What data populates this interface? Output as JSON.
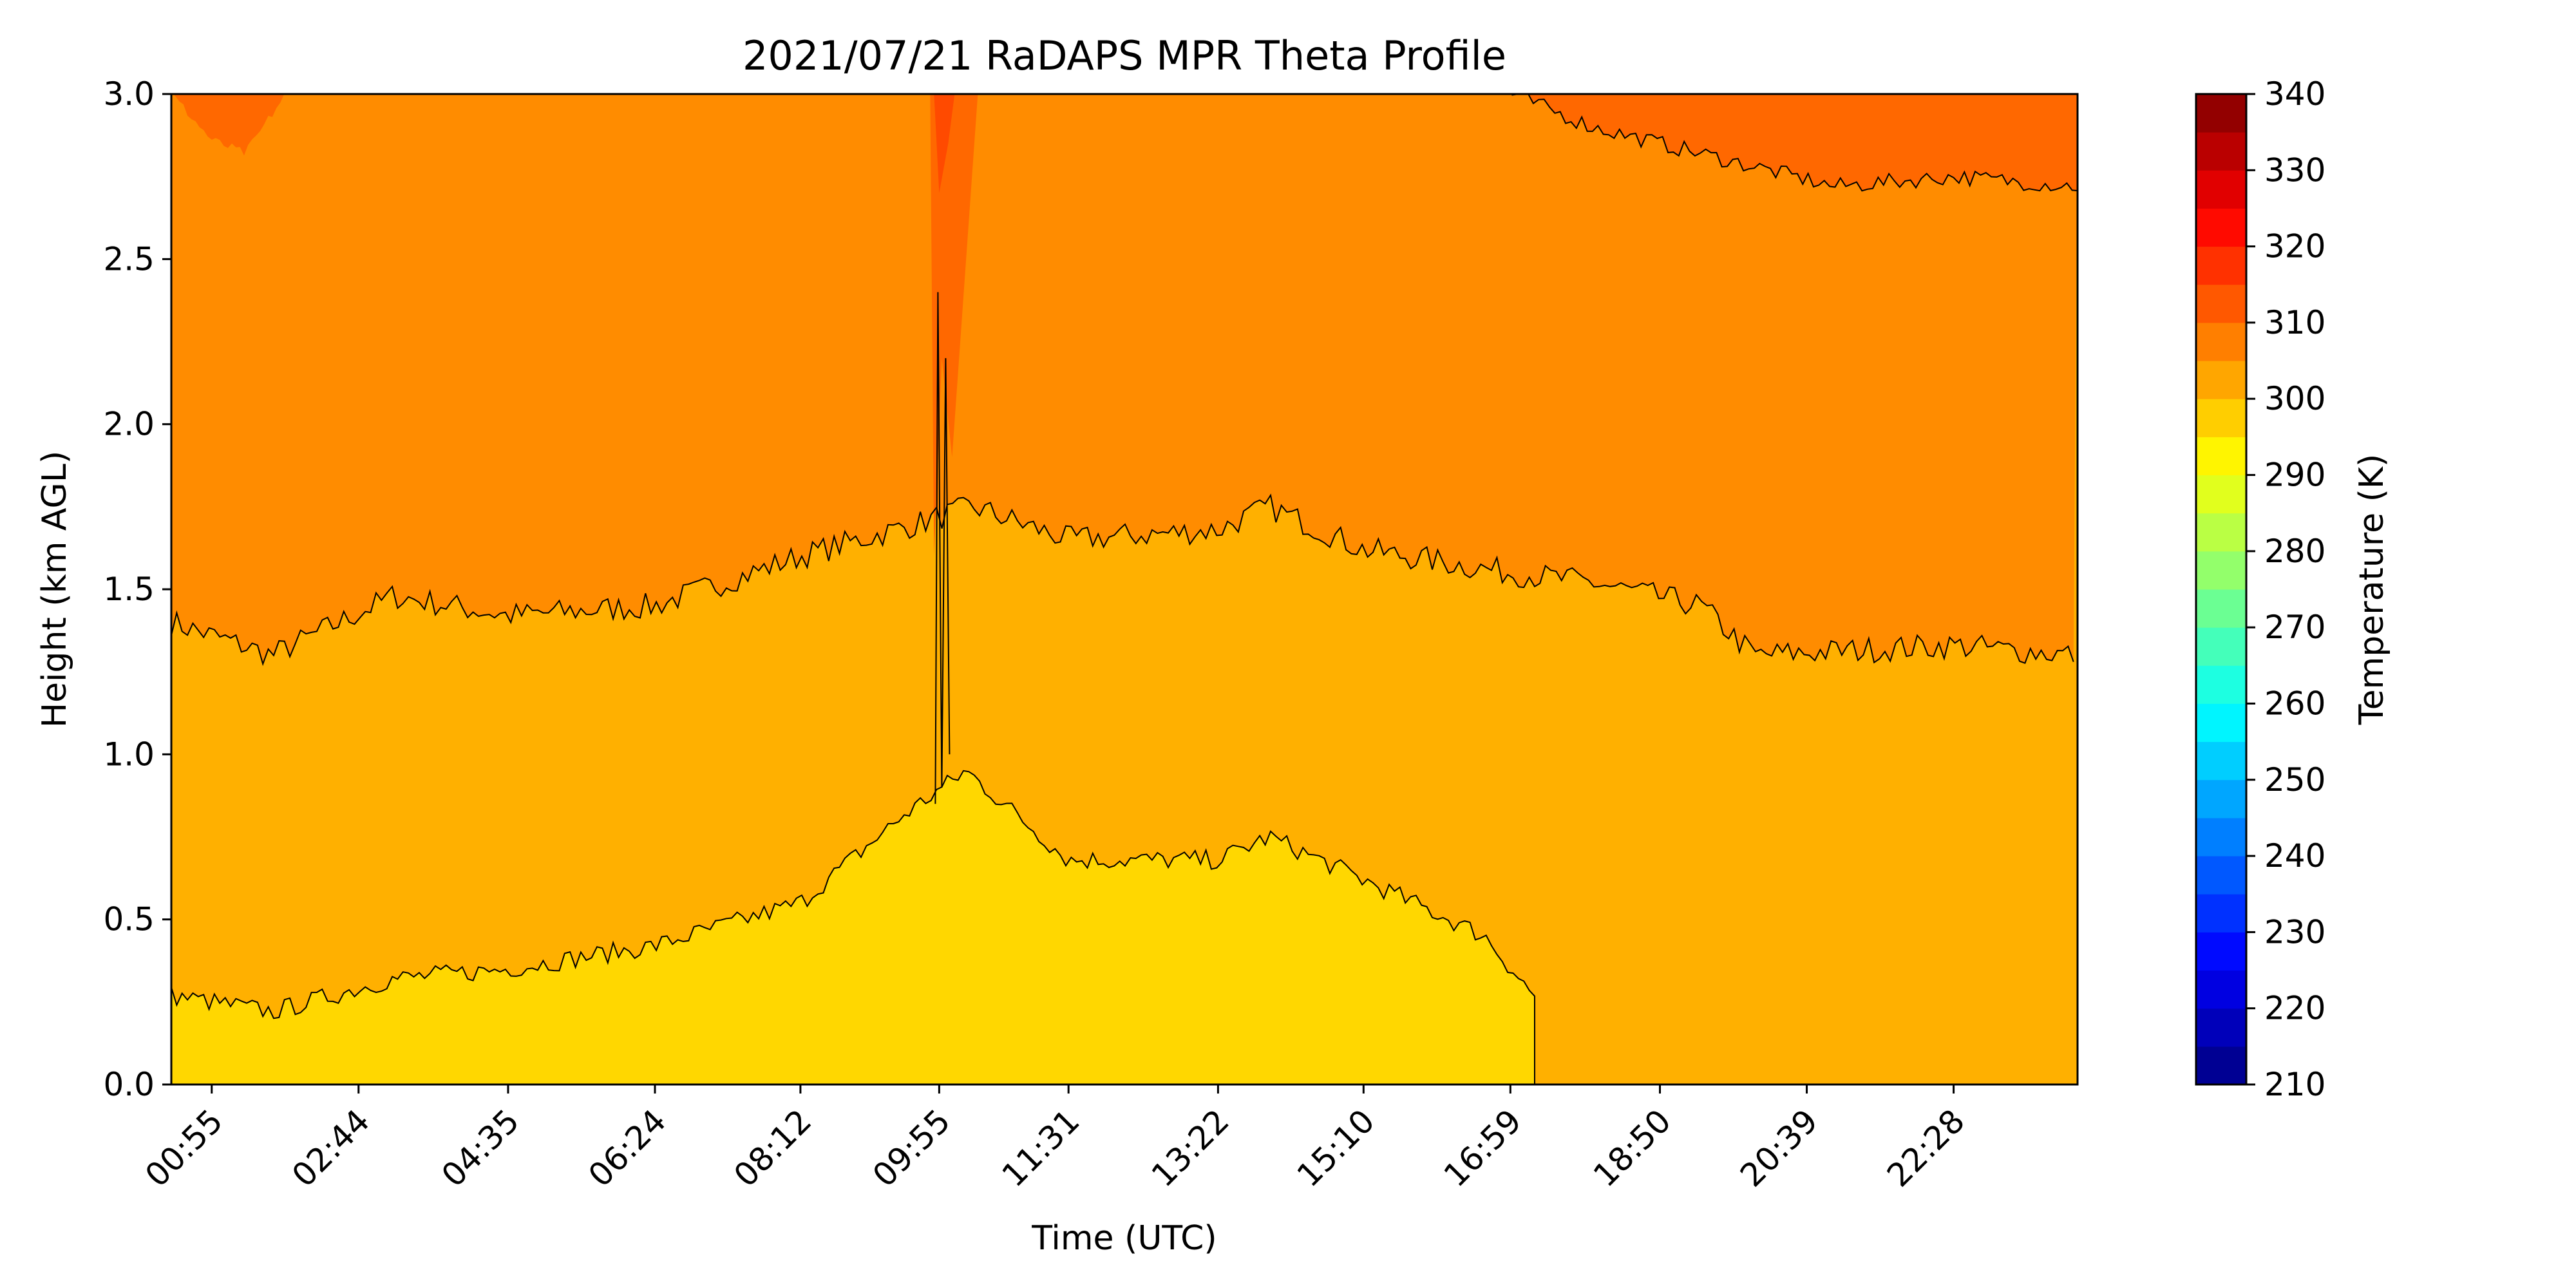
{
  "chart_data": {
    "type": "heatmap",
    "subtype": "filled-contour",
    "title": "2021/07/21 RaDAPS MPR Theta Profile",
    "xlabel": "Time (UTC)",
    "ylabel": "Height (km AGL)",
    "colorbar_label": "Temperature (K)",
    "xlim": [
      "00:25",
      "24:00"
    ],
    "ylim": [
      0.0,
      3.0
    ],
    "x_tick_labels": [
      "00:55",
      "02:44",
      "04:35",
      "06:24",
      "08:12",
      "09:55",
      "11:31",
      "13:22",
      "15:10",
      "16:59",
      "18:50",
      "20:39",
      "22:28"
    ],
    "x_tick_times": [
      "00:55",
      "02:44",
      "04:35",
      "06:24",
      "08:12",
      "09:55",
      "11:31",
      "13:22",
      "15:10",
      "16:59",
      "18:50",
      "20:39",
      "22:28"
    ],
    "y_ticks": [
      0.0,
      0.5,
      1.0,
      1.5,
      2.0,
      2.5,
      3.0
    ],
    "y_tick_labels": [
      "0.0",
      "0.5",
      "1.0",
      "1.5",
      "2.0",
      "2.5",
      "3.0"
    ],
    "colorbar_ticks": [
      210,
      220,
      230,
      240,
      250,
      260,
      270,
      280,
      290,
      300,
      310,
      320,
      330,
      340
    ],
    "colorbar_tick_labels": [
      "210",
      "220",
      "230",
      "240",
      "250",
      "260",
      "270",
      "280",
      "290",
      "300",
      "310",
      "320",
      "330",
      "340"
    ],
    "colorbar_range": [
      210,
      340
    ],
    "contour_interval_k": 5,
    "colormap": "jet",
    "colormap_stops": [
      "#00007f",
      "#0000ff",
      "#007fff",
      "#00ffff",
      "#7fff7f",
      "#ffff00",
      "#ff7f00",
      "#ff0000",
      "#7f0000"
    ],
    "grid": false,
    "levels_present": [
      {
        "range_k": [
          295,
          300
        ],
        "color": "#ffd700",
        "description": "yellow band near surface"
      },
      {
        "range_k": [
          300,
          305
        ],
        "color": "#ffb000",
        "description": "mid layer"
      },
      {
        "range_k": [
          305,
          310
        ],
        "color": "#ff8c00",
        "description": "upper layer"
      },
      {
        "range_k": [
          310,
          315
        ],
        "color": "#ff6800",
        "description": "top patches"
      },
      {
        "range_k": [
          315,
          320
        ],
        "color": "#ff4a00",
        "description": "spike near 09:55"
      }
    ],
    "contour_305K_height_km": {
      "times": [
        "00:25",
        "01:40",
        "03:10",
        "04:35",
        "06:24",
        "08:12",
        "09:40",
        "10:20",
        "11:31",
        "13:22",
        "14:00",
        "15:10",
        "16:59",
        "18:00",
        "19:20",
        "20:00",
        "22:28",
        "24:00"
      ],
      "values": [
        1.4,
        1.3,
        1.48,
        1.42,
        1.45,
        1.6,
        1.7,
        1.75,
        1.65,
        1.68,
        1.75,
        1.62,
        1.55,
        1.52,
        1.45,
        1.3,
        1.33,
        1.3
      ]
    },
    "contour_300K_height_km": {
      "times": [
        "00:25",
        "01:40",
        "03:10",
        "04:35",
        "06:24",
        "08:12",
        "09:30",
        "10:15",
        "11:31",
        "13:22",
        "14:00",
        "15:10",
        "16:40",
        "17:20"
      ],
      "values": [
        0.27,
        0.22,
        0.32,
        0.35,
        0.42,
        0.55,
        0.82,
        0.95,
        0.68,
        0.68,
        0.75,
        0.62,
        0.45,
        0.25
      ]
    },
    "contour_310K_height_km": {
      "times": [
        "17:00",
        "18:00",
        "19:20",
        "20:00",
        "21:00",
        "22:28",
        "24:00"
      ],
      "values": [
        3.0,
        2.9,
        2.82,
        2.78,
        2.72,
        2.75,
        2.72
      ]
    }
  }
}
